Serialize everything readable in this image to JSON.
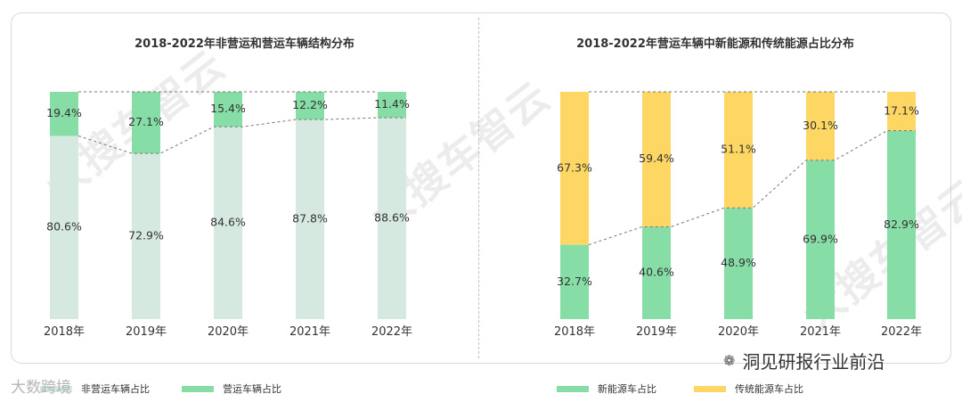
{
  "left_chart": {
    "title": "2018-2022年非营运和营运车辆结构分布",
    "legend": [
      {
        "label": "非营运车辆占比",
        "color": "#d6e9e1"
      },
      {
        "label": "营运车辆占比",
        "color": "#86dda5"
      }
    ]
  },
  "right_chart": {
    "title": "2018-2022年营运车辆中新能源和传统能源占比分布",
    "legend": [
      {
        "label": "新能源车占比",
        "color": "#86dda5"
      },
      {
        "label": "传统能源车占比",
        "color": "#fdd663"
      }
    ]
  },
  "chart_data": [
    {
      "type": "bar",
      "stacked": true,
      "title": "2018-2022年非营运和营运车辆结构分布",
      "categories": [
        "2018年",
        "2019年",
        "2020年",
        "2021年",
        "2022年"
      ],
      "ylim": [
        0,
        100
      ],
      "series": [
        {
          "name": "非营运车辆占比",
          "values": [
            80.6,
            72.9,
            84.6,
            87.8,
            88.6
          ],
          "labels": [
            "80.6%",
            "72.9%",
            "84.6%",
            "87.8%",
            "88.6%"
          ],
          "color": "#d6e9e1"
        },
        {
          "name": "营运车辆占比",
          "values": [
            19.4,
            27.1,
            15.4,
            12.2,
            11.4
          ],
          "labels": [
            "19.4%",
            "27.1%",
            "15.4%",
            "12.2%",
            "11.4%"
          ],
          "color": "#86dda5"
        }
      ],
      "connector": "dashed line joining top of first series across bars",
      "legend_position": "bottom"
    },
    {
      "type": "bar",
      "stacked": true,
      "title": "2018-2022年营运车辆中新能源和传统能源占比分布",
      "categories": [
        "2018年",
        "2019年",
        "2020年",
        "2021年",
        "2022年"
      ],
      "ylim": [
        0,
        100
      ],
      "series": [
        {
          "name": "新能源车占比",
          "values": [
            32.7,
            40.6,
            48.9,
            69.9,
            82.9
          ],
          "labels": [
            "32.7%",
            "40.6%",
            "48.9%",
            "69.9%",
            "82.9%"
          ],
          "color": "#86dda5"
        },
        {
          "name": "传统能源车占比",
          "values": [
            67.3,
            59.4,
            51.1,
            30.1,
            17.1
          ],
          "labels": [
            "67.3%",
            "59.4%",
            "51.1%",
            "30.1%",
            "17.1%"
          ],
          "color": "#fdd663"
        }
      ],
      "connector": "dashed line joining top of first series across bars",
      "legend_position": "bottom"
    }
  ],
  "watermarks": {
    "diagonal": "大搜车智云",
    "account": "洞见研报行业前沿",
    "bottom_left": "大数跨境"
  }
}
